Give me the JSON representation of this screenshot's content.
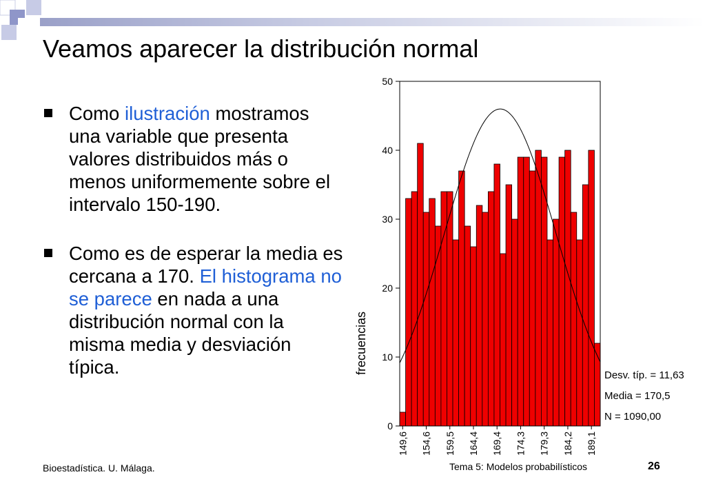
{
  "slide": {
    "title": "Veamos aparecer la distribución normal",
    "bullets": [
      {
        "parts": [
          {
            "text": "Como ",
            "hl": false
          },
          {
            "text": "ilustración",
            "hl": true
          },
          {
            "text": " mostramos una variable que presenta valores distribuidos más o menos uniformemente sobre el intervalo 150-190.",
            "hl": false
          }
        ]
      },
      {
        "parts": [
          {
            "text": "Como es de esperar la media es cercana a 170. ",
            "hl": false
          },
          {
            "text": "El histograma no se parece",
            "hl": true
          },
          {
            "text": " en nada a una distribución normal con la misma media y desviación típica.",
            "hl": false
          }
        ]
      }
    ],
    "footer_left": "Bioestadística. U. Málaga.",
    "footer_center": "Tema 5: Modelos probabilísticos",
    "page_number": "26",
    "colors": {
      "highlight": "#1f5fd6",
      "bar": "#ee0000",
      "decor": "#9aa0c8"
    }
  },
  "chart_data": {
    "type": "bar",
    "ylabel": "frecuencias",
    "ylim": [
      0,
      50
    ],
    "yticks": [
      0,
      10,
      20,
      30,
      40,
      50
    ],
    "xtick_labels": [
      "149,6",
      "154,6",
      "159,5",
      "164,4",
      "169,4",
      "174,3",
      "179,3",
      "184,2",
      "189,1"
    ],
    "values": [
      2,
      33,
      34,
      41,
      31,
      33,
      29,
      34,
      34,
      27,
      37,
      29,
      26,
      32,
      31,
      34,
      38,
      25,
      35,
      30,
      39,
      39,
      37,
      40,
      39,
      27,
      30,
      39,
      40,
      31,
      27,
      35,
      40,
      12
    ],
    "normal_curve": {
      "mean": 170.5,
      "sd": 11.63,
      "n": 1090,
      "bin_width": 1.23,
      "x_start": 149.6,
      "x_end": 191.3
    },
    "stats": [
      "Desv. típ. = 11,63",
      "Media = 170,5",
      "N = 1090,00"
    ]
  }
}
